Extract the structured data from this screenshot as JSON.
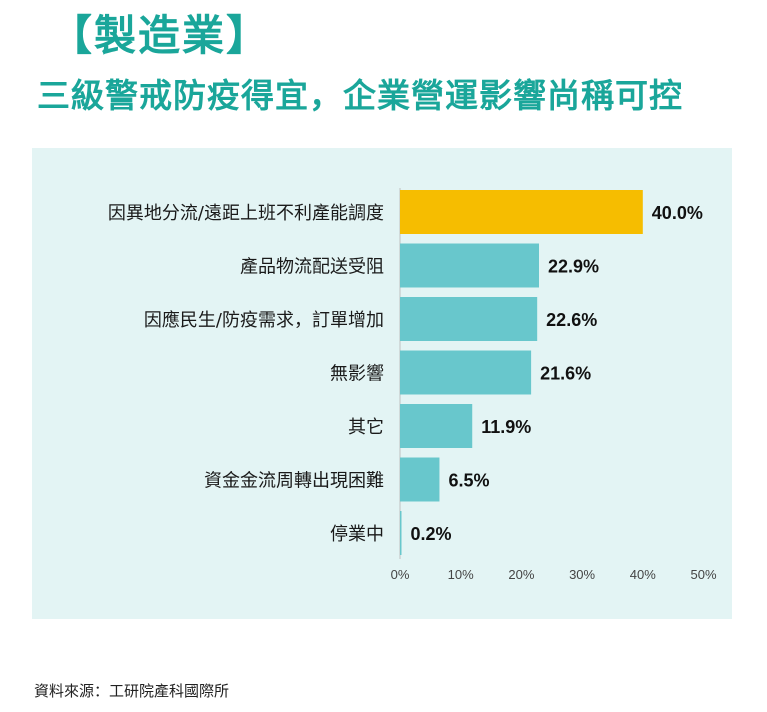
{
  "header": {
    "title": "【製造業】",
    "subtitle": "三級警戒防疫得宜，企業營運影響尚稱可控"
  },
  "footer": {
    "source": "資料來源：工研院產科國際所"
  },
  "colors": {
    "title": "#1aa69a",
    "panel_background": "#e3f4f4",
    "bar_default": "#68c7cc",
    "bar_highlight": "#f6bd00",
    "axis": "#bfbfbf"
  },
  "chart_data": {
    "type": "bar",
    "orientation": "horizontal",
    "categories": [
      "因異地分流/遠距上班不利產能調度",
      "產品物流配送受阻",
      "因應民生/防疫需求，訂單增加",
      "無影響",
      "其它",
      "資金金流周轉出現困難",
      "停業中"
    ],
    "values": [
      40.0,
      22.9,
      22.6,
      21.6,
      11.9,
      6.5,
      0.2
    ],
    "value_labels": [
      "40.0%",
      "22.9%",
      "22.6%",
      "21.6%",
      "11.9%",
      "6.5%",
      "0.2%"
    ],
    "highlight_index": 0,
    "xlim": [
      0,
      50
    ],
    "xticks": [
      0,
      10,
      20,
      30,
      40,
      50
    ],
    "xtick_labels": [
      "0%",
      "10%",
      "20%",
      "30%",
      "40%",
      "50%"
    ],
    "grid": false,
    "legend": "none"
  }
}
